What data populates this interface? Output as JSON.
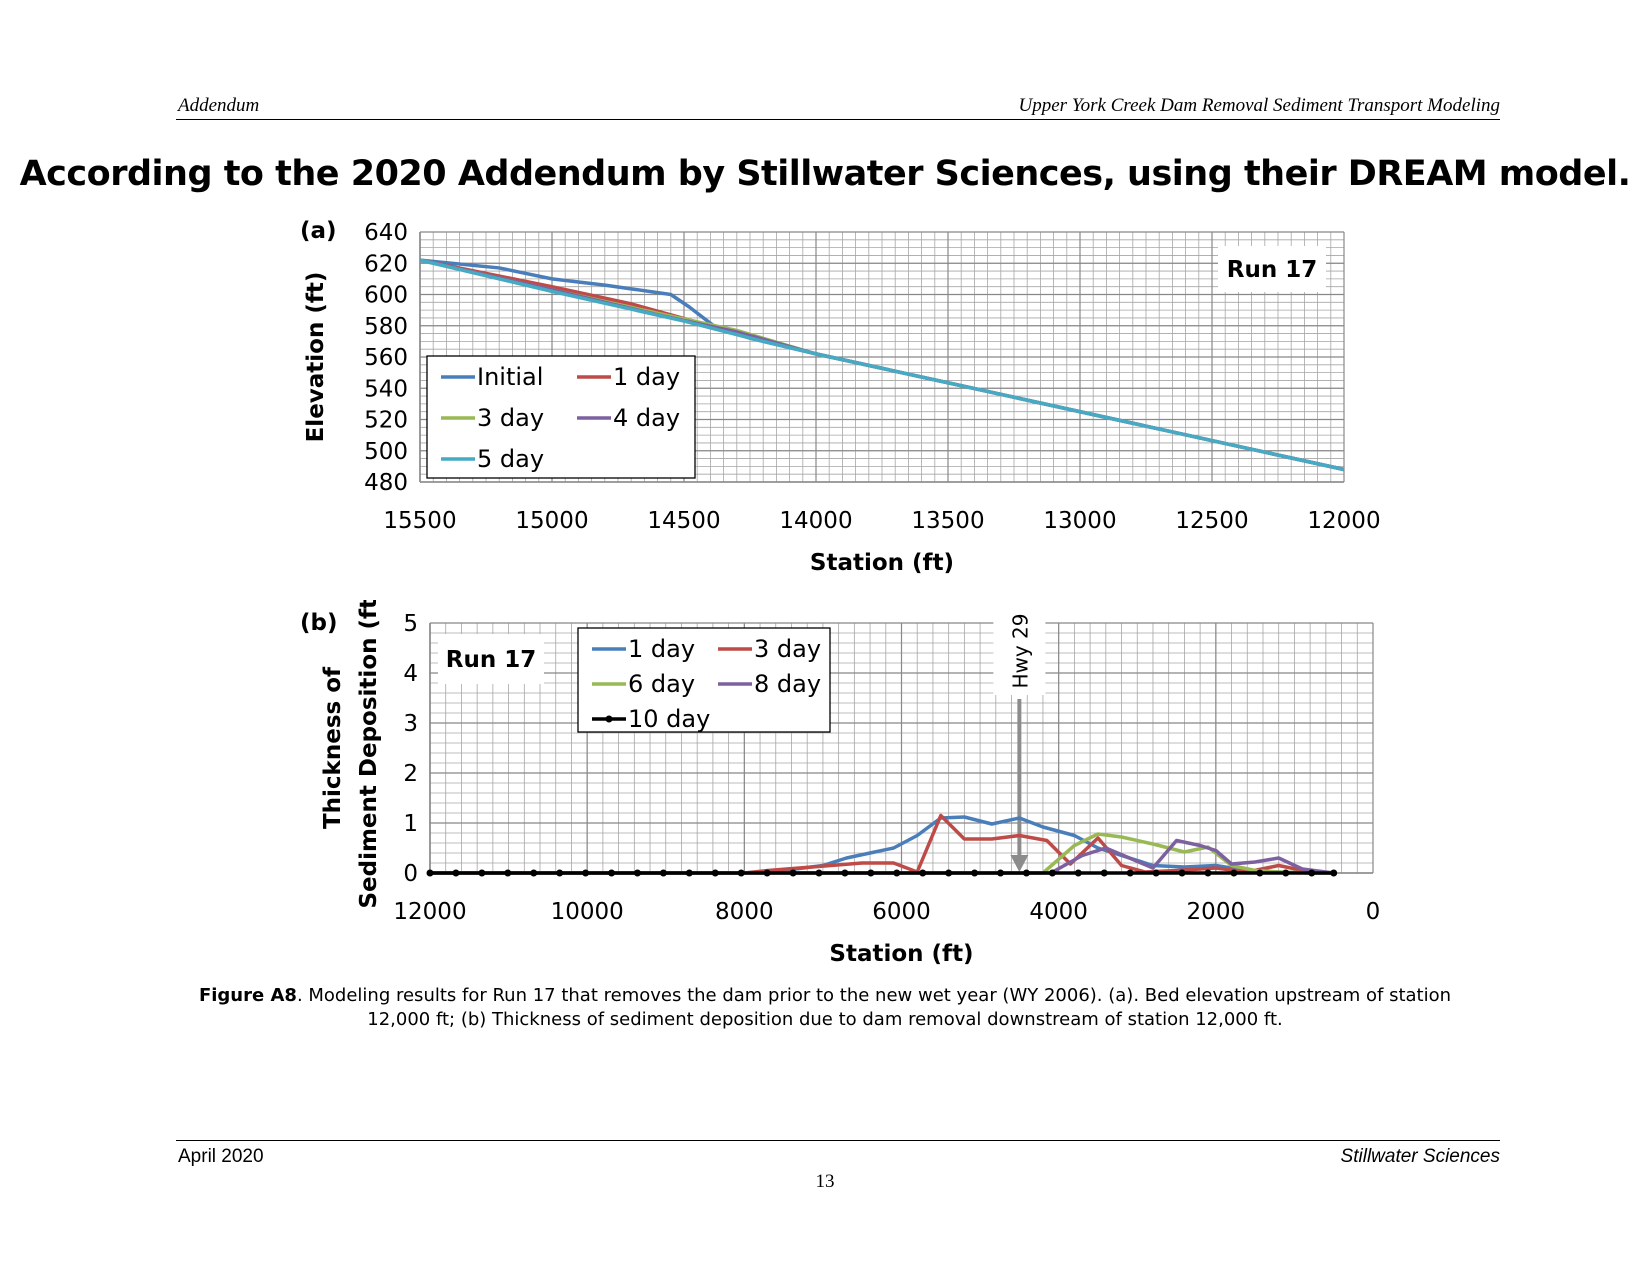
{
  "header": {
    "left": "Addendum",
    "right": "Upper York Creek Dam Removal Sediment Transport Modeling"
  },
  "headline": "According to the 2020 Addendum by Stillwater Sciences, using their DREAM model.",
  "caption": {
    "label": "Figure A8",
    "text": ". Modeling results for Run 17 that removes the dam prior to the new wet year (WY 2006).  (a). Bed elevation upstream of station 12,000 ft; (b) Thickness of sediment deposition due to dam removal downstream of station 12,000 ft."
  },
  "footer": {
    "left": "April 2020",
    "right": "Stillwater Sciences",
    "page": "13"
  },
  "colors": {
    "blue": "#4a7ebb",
    "red": "#be4b48",
    "green": "#98b954",
    "purple": "#7d60a0",
    "cyan": "#46aac5",
    "black": "#000000",
    "grid": "#a6a6a6"
  },
  "chart_data": [
    {
      "type": "line",
      "panel_label": "(a)",
      "annotation": "Run 17",
      "xlabel": "Station (ft)",
      "ylabel": "Elevation (ft)",
      "xlim": [
        15500,
        12000
      ],
      "ylim": [
        480,
        640
      ],
      "x_ticks": [
        15500,
        15000,
        14500,
        14000,
        13500,
        13000,
        12500,
        12000
      ],
      "y_ticks": [
        480,
        500,
        520,
        540,
        560,
        580,
        600,
        620,
        640
      ],
      "grid": true,
      "legend_position": "lower-left",
      "series": [
        {
          "name": "Initial",
          "color": "#4a7ebb",
          "x": [
            15500,
            15200,
            15000,
            14800,
            14550,
            14480,
            14380,
            14250,
            14000,
            12000
          ],
          "y": [
            622,
            617,
            610,
            606,
            600,
            592,
            579,
            572,
            562,
            488
          ]
        },
        {
          "name": "1 day",
          "color": "#be4b48",
          "x": [
            15500,
            15000,
            14700,
            14400,
            14000,
            12000
          ],
          "y": [
            622,
            605,
            594,
            580,
            562,
            488
          ]
        },
        {
          "name": "3 day",
          "color": "#98b954",
          "x": [
            15500,
            15000,
            14600,
            14300,
            14000,
            12000
          ],
          "y": [
            622,
            603,
            588,
            577,
            562,
            488
          ]
        },
        {
          "name": "4 day",
          "color": "#7d60a0",
          "x": [
            15500,
            15000,
            14600,
            14300,
            14000,
            12000
          ],
          "y": [
            622,
            603,
            587,
            576,
            562,
            488
          ]
        },
        {
          "name": "5 day",
          "color": "#46aac5",
          "x": [
            15500,
            15000,
            14500,
            14200,
            14000,
            12000
          ],
          "y": [
            622,
            602,
            583,
            570,
            562,
            488
          ]
        }
      ]
    },
    {
      "type": "line",
      "panel_label": "(b)",
      "annotation": "Run 17",
      "marker_label": "Hwy 29",
      "marker_x": 4500,
      "xlabel": "Station (ft)",
      "ylabel": [
        "Thickness of",
        "Sediment Deposition (ft)"
      ],
      "xlim": [
        12000,
        0
      ],
      "ylim": [
        0,
        5
      ],
      "x_ticks": [
        12000,
        10000,
        8000,
        6000,
        4000,
        2000,
        0
      ],
      "y_ticks": [
        0,
        1,
        2,
        3,
        4,
        5
      ],
      "grid": true,
      "legend_position": "top-left",
      "series": [
        {
          "name": "1 day",
          "color": "#4a7ebb",
          "x": [
            12000,
            8000,
            7500,
            7000,
            6700,
            6400,
            6100,
            5800,
            5500,
            5200,
            4850,
            4500,
            4200,
            3800,
            3500,
            3200,
            2800,
            2400,
            2000,
            1600,
            1200,
            800,
            500
          ],
          "y": [
            0,
            0,
            0.05,
            0.15,
            0.3,
            0.4,
            0.5,
            0.75,
            1.1,
            1.12,
            0.98,
            1.1,
            0.92,
            0.75,
            0.5,
            0.35,
            0.15,
            0.12,
            0.15,
            0.05,
            0.02,
            0,
            0
          ]
        },
        {
          "name": "3 day",
          "color": "#be4b48",
          "x": [
            12000,
            8000,
            7700,
            7300,
            6900,
            6500,
            6100,
            5800,
            5500,
            5200,
            4850,
            4500,
            4150,
            3850,
            3500,
            3200,
            2900,
            2500,
            2000,
            1600,
            1200,
            800,
            500
          ],
          "y": [
            0,
            0,
            0.05,
            0.1,
            0.15,
            0.2,
            0.2,
            0.02,
            1.15,
            0.68,
            0.68,
            0.75,
            0.65,
            0.18,
            0.7,
            0.15,
            0.02,
            0.05,
            0.1,
            0.02,
            0.15,
            0.02,
            0
          ]
        },
        {
          "name": "6 day",
          "color": "#98b954",
          "x": [
            12000,
            4200,
            3800,
            3500,
            3200,
            2800,
            2400,
            2100,
            1800,
            1500,
            1200,
            800,
            500
          ],
          "y": [
            0,
            0,
            0.55,
            0.78,
            0.72,
            0.58,
            0.42,
            0.52,
            0.15,
            0.05,
            0.02,
            0,
            0
          ]
        },
        {
          "name": "8 day",
          "color": "#7d60a0",
          "x": [
            12000,
            4100,
            3700,
            3400,
            3100,
            2800,
            2500,
            2200,
            2000,
            1800,
            1500,
            1200,
            900,
            500
          ],
          "y": [
            0,
            0,
            0.35,
            0.5,
            0.3,
            0.1,
            0.65,
            0.55,
            0.45,
            0.18,
            0.22,
            0.3,
            0.08,
            0
          ]
        },
        {
          "name": "10 day",
          "color": "#000000",
          "marker": "circle",
          "x": [
            12000,
            11670,
            11340,
            11010,
            10680,
            10350,
            10020,
            9690,
            9360,
            9030,
            8700,
            8370,
            8040,
            7710,
            7380,
            7050,
            6720,
            6390,
            6060,
            5730,
            5400,
            5070,
            4740,
            4410,
            4080,
            3750,
            3420,
            3090,
            2760,
            2430,
            2100,
            1770,
            1440,
            1110,
            780,
            500
          ],
          "y": [
            0,
            0,
            0,
            0,
            0,
            0,
            0,
            0,
            0,
            0,
            0,
            0,
            0,
            0,
            0,
            0,
            0,
            0,
            0,
            0,
            0,
            0,
            0,
            0,
            0,
            0,
            0,
            0,
            0,
            0,
            0,
            0,
            0,
            0,
            0,
            0
          ]
        }
      ]
    }
  ]
}
